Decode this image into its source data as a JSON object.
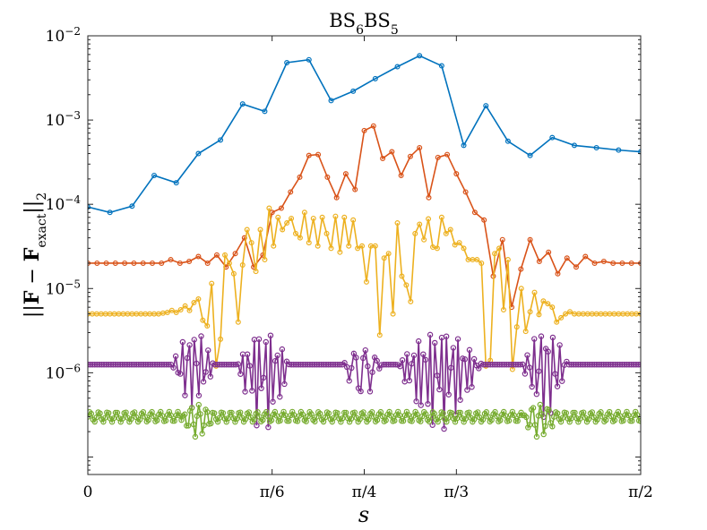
{
  "chart_data": {
    "type": "line",
    "title": {
      "base": "BS",
      "sub1": "6",
      "mid": "BS",
      "sub2": "5"
    },
    "ylabel": {
      "pre": "||",
      "bold1": "F",
      "minus": " − ",
      "bold2": "F",
      "sub": "exact",
      "post": "||",
      "tail": "2"
    },
    "xlabel": "s",
    "x_scale": "linear",
    "y_scale": "log",
    "xlim": [
      0,
      1.5708
    ],
    "ylim": [
      6.2e-08,
      0.01
    ],
    "grid": false,
    "legend": "none",
    "x_ticks": [
      {
        "value": 0,
        "label": "0"
      },
      {
        "value": 0.5236,
        "label": "π/6"
      },
      {
        "value": 0.7854,
        "label": "π/4"
      },
      {
        "value": 1.0472,
        "label": "π/3"
      },
      {
        "value": 1.5708,
        "label": "π/2"
      }
    ],
    "y_ticks": [
      {
        "value": 1e-06,
        "base": "10",
        "exp": "−6"
      },
      {
        "value": 1e-05,
        "base": "10",
        "exp": "−5"
      },
      {
        "value": 0.0001,
        "base": "10",
        "exp": "−4"
      },
      {
        "value": 0.001,
        "base": "10",
        "exp": "−3"
      },
      {
        "value": 0.01,
        "base": "10",
        "exp": "−2"
      }
    ],
    "series": [
      {
        "color": "#0072BD",
        "x": [
          0,
          0.0628,
          0.1257,
          0.1885,
          0.2513,
          0.3142,
          0.377,
          0.4398,
          0.5027,
          0.5655,
          0.6283,
          0.6912,
          0.754,
          0.8168,
          0.8796,
          0.9425,
          1.0053,
          1.0681,
          1.131,
          1.1938,
          1.2566,
          1.3195,
          1.3823,
          1.4451,
          1.508,
          1.5708
        ],
        "y": [
          9.3e-05,
          8e-05,
          9.5e-05,
          0.00022,
          0.00018,
          0.0004,
          0.00058,
          0.00155,
          0.00127,
          0.0048,
          0.0052,
          0.0017,
          0.0022,
          0.0031,
          0.0043,
          0.0058,
          0.0044,
          0.0005,
          0.00148,
          0.00056,
          0.00038,
          0.00062,
          0.0005,
          0.00047,
          0.00044,
          0.00042
        ]
      },
      {
        "color": "#D95319",
        "x": [
          0,
          0.0262,
          0.0524,
          0.0785,
          0.1047,
          0.1309,
          0.1571,
          0.1833,
          0.2094,
          0.2356,
          0.2618,
          0.288,
          0.3142,
          0.3403,
          0.3665,
          0.3927,
          0.4189,
          0.4451,
          0.4712,
          0.4974,
          0.5236,
          0.5498,
          0.576,
          0.6021,
          0.6283,
          0.6545,
          0.6807,
          0.7069,
          0.733,
          0.7592,
          0.7854,
          0.8116,
          0.8378,
          0.8639,
          0.8901,
          0.9163,
          0.9425,
          0.9687,
          0.9948,
          1.021,
          1.0472,
          1.0734,
          1.0996,
          1.1257,
          1.1519,
          1.1781,
          1.2043,
          1.2305,
          1.2566,
          1.2828,
          1.309,
          1.3352,
          1.3614,
          1.3875,
          1.4137,
          1.4399,
          1.4661,
          1.4923,
          1.5184,
          1.5446,
          1.5708
        ],
        "y": [
          2e-05,
          2e-05,
          2e-05,
          2e-05,
          2e-05,
          2e-05,
          2e-05,
          2e-05,
          2e-05,
          2.2e-05,
          2e-05,
          2.1e-05,
          2.4e-05,
          2e-05,
          2.5e-05,
          1.8e-05,
          2.6e-05,
          4e-05,
          1.8e-05,
          2.5e-05,
          8e-05,
          9e-05,
          0.00014,
          0.00021,
          0.00038,
          0.00039,
          0.00021,
          0.00012,
          0.00023,
          0.00015,
          0.00075,
          0.00085,
          0.00035,
          0.00042,
          0.00022,
          0.00037,
          0.00047,
          0.00012,
          0.00036,
          0.00039,
          0.00023,
          0.00014,
          8e-05,
          6.5e-05,
          1.4e-05,
          3.8e-05,
          6e-06,
          1.7e-05,
          3.8e-05,
          2.1e-05,
          2.7e-05,
          1.5e-05,
          2.3e-05,
          1.8e-05,
          2.4e-05,
          2e-05,
          2.1e-05,
          2e-05,
          2e-05,
          2e-05,
          2e-05
        ]
      },
      {
        "color": "#EDB120",
        "x": [
          0,
          0.0126,
          0.0251,
          0.0377,
          0.0503,
          0.0628,
          0.0754,
          0.088,
          0.1005,
          0.1131,
          0.1257,
          0.1382,
          0.1508,
          0.1634,
          0.1759,
          0.1885,
          0.2011,
          0.2136,
          0.2262,
          0.2388,
          0.2513,
          0.2639,
          0.2765,
          0.289,
          0.3016,
          0.3142,
          0.3267,
          0.3393,
          0.3519,
          0.3644,
          0.377,
          0.3896,
          0.4021,
          0.4147,
          0.4273,
          0.4398,
          0.4524,
          0.465,
          0.4775,
          0.4901,
          0.5027,
          0.5152,
          0.5278,
          0.5404,
          0.5529,
          0.5655,
          0.5781,
          0.5906,
          0.6032,
          0.6158,
          0.6283,
          0.6409,
          0.6535,
          0.666,
          0.6786,
          0.6912,
          0.7037,
          0.7163,
          0.7288,
          0.7414,
          0.754,
          0.7665,
          0.7791,
          0.7917,
          0.8042,
          0.8168,
          0.8294,
          0.8419,
          0.8545,
          0.8671,
          0.8796,
          0.8922,
          0.9048,
          0.9173,
          0.9299,
          0.9425,
          0.955,
          0.9676,
          0.9802,
          0.9927,
          1.0053,
          1.0179,
          1.0304,
          1.043,
          1.0556,
          1.0681,
          1.0807,
          1.0933,
          1.1058,
          1.1184,
          1.131,
          1.1435,
          1.1561,
          1.1687,
          1.1812,
          1.1938,
          1.2064,
          1.2189,
          1.2315,
          1.2441,
          1.2566,
          1.2692,
          1.2818,
          1.2943,
          1.3069,
          1.3195,
          1.332,
          1.3446,
          1.3572,
          1.3697,
          1.3823,
          1.3949,
          1.4074,
          1.42,
          1.4326,
          1.4451,
          1.4577,
          1.4703,
          1.4828,
          1.4954,
          1.508,
          1.5205,
          1.5331,
          1.5457,
          1.5582,
          1.5708
        ],
        "y": [
          5e-06,
          5e-06,
          5e-06,
          5e-06,
          5e-06,
          5e-06,
          5e-06,
          5e-06,
          5e-06,
          5e-06,
          5e-06,
          5e-06,
          5e-06,
          5e-06,
          5e-06,
          5e-06,
          5e-06,
          5.1e-06,
          5.2e-06,
          5.5e-06,
          5.2e-06,
          5.6e-06,
          6.2e-06,
          5.5e-06,
          6.8e-06,
          7.5e-06,
          4.2e-06,
          3.6e-06,
          1.15e-05,
          1.2e-06,
          2.5e-06,
          2.5e-05,
          2e-05,
          1.5e-05,
          4e-06,
          1.9e-05,
          5e-05,
          3.5e-05,
          1.6e-05,
          5e-05,
          2.2e-05,
          9e-05,
          3.2e-05,
          7e-05,
          5e-05,
          6e-05,
          6.8e-05,
          4.5e-05,
          4e-05,
          8e-05,
          3.5e-05,
          6.8e-05,
          3.2e-05,
          7e-05,
          4.5e-05,
          3e-05,
          7.2e-05,
          2.7e-05,
          7e-05,
          3.2e-05,
          6.5e-05,
          3e-05,
          3.2e-05,
          1.2e-05,
          3.2e-05,
          3.2e-05,
          2.8e-06,
          2.3e-05,
          2.6e-05,
          5e-06,
          6e-05,
          1.4e-05,
          1.1e-05,
          7e-06,
          4.5e-05,
          5.8e-05,
          3.8e-05,
          6.7e-05,
          3.1e-05,
          3e-05,
          7e-05,
          4.5e-05,
          5e-05,
          3.3e-05,
          3.5e-05,
          3e-05,
          2.2e-05,
          2.2e-05,
          2.2e-05,
          2e-05,
          1.2e-06,
          1.4e-06,
          2.6e-05,
          3e-05,
          5.6e-06,
          2.2e-05,
          1.1e-06,
          3.5e-06,
          1e-05,
          3.1e-06,
          5.3e-06,
          9e-06,
          4.9e-06,
          7.1e-06,
          6.6e-06,
          6e-06,
          4e-06,
          4.5e-06,
          5e-06,
          5.3e-06,
          5e-06,
          5e-06,
          5e-06,
          5e-06,
          5e-06,
          5e-06,
          5e-06,
          5e-06,
          5e-06,
          5e-06,
          5e-06,
          5e-06,
          5e-06,
          5e-06,
          5e-06,
          5e-06
        ]
      },
      {
        "color": "#7E2F8E",
        "generated": true,
        "formula": "baseline 1.25e-6 with localized oscillation bursts",
        "n": 240,
        "baseline": 1.25e-06,
        "bursts": [
          {
            "center": 0.3,
            "halfwidth": 0.06,
            "min": 3.8e-07,
            "max": 3.2e-06,
            "period": 0.018
          },
          {
            "center": 0.5,
            "halfwidth": 0.075,
            "min": 2e-07,
            "max": 3.1e-06,
            "period": 0.016
          },
          {
            "center": 0.78,
            "halfwidth": 0.055,
            "min": 5e-07,
            "max": 1.9e-06,
            "period": 0.03
          },
          {
            "center": 1.0,
            "halfwidth": 0.12,
            "min": 2.1e-07,
            "max": 3.1e-06,
            "period": 0.016
          },
          {
            "center": 1.3,
            "halfwidth": 0.065,
            "min": 2.8e-07,
            "max": 3.3e-06,
            "period": 0.018
          }
        ]
      },
      {
        "color": "#77AC30",
        "generated": true,
        "formula": "baseline 3e-7 with small ripple and two dips",
        "n": 320,
        "baseline": 3e-07,
        "ripple": 0.12,
        "ripple_period": 0.025,
        "bursts": [
          {
            "center": 0.31,
            "halfwidth": 0.05,
            "min": 1.7e-07,
            "max": 4.2e-07,
            "period": 0.022
          },
          {
            "center": 1.28,
            "halfwidth": 0.05,
            "min": 1.7e-07,
            "max": 4.2e-07,
            "period": 0.022
          }
        ]
      }
    ]
  }
}
